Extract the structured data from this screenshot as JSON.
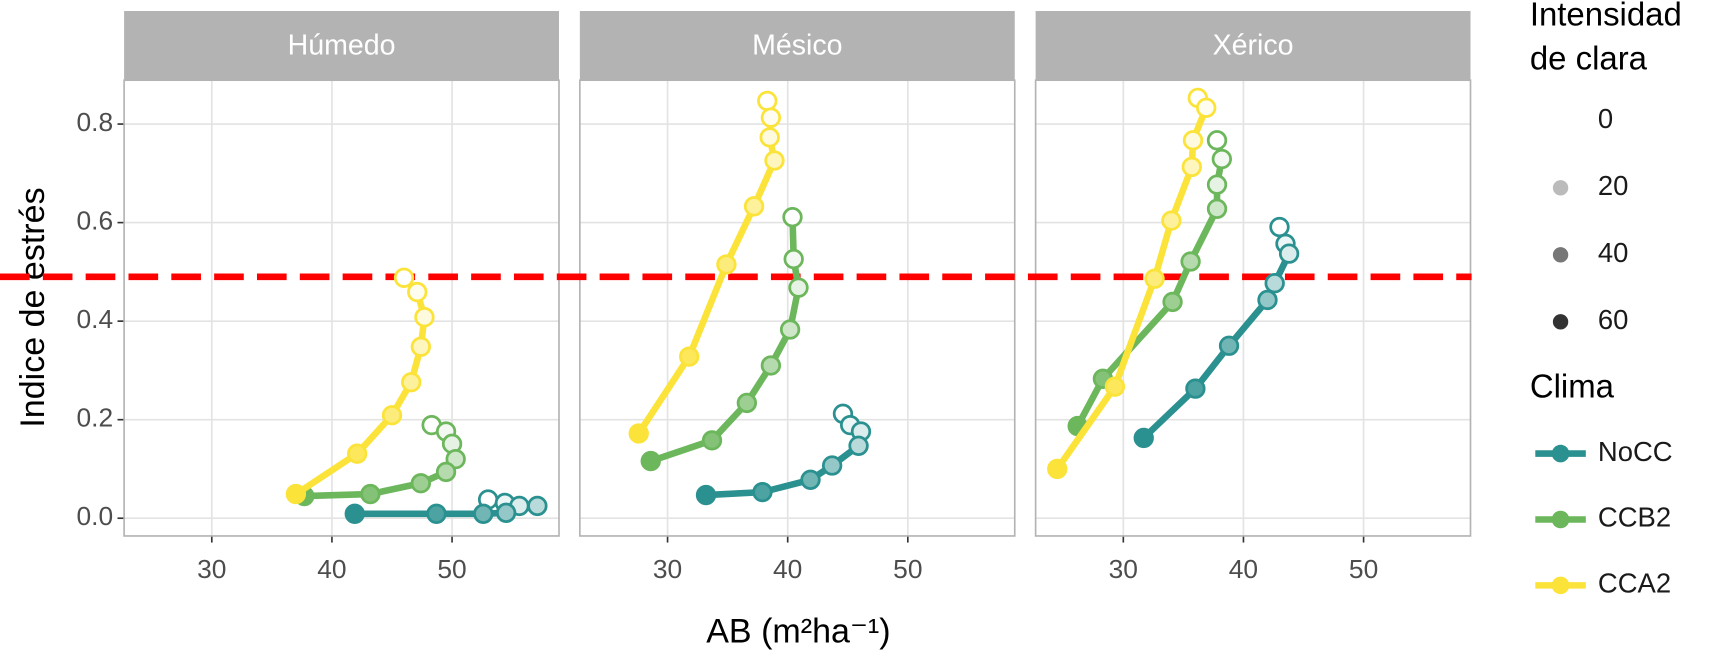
{
  "chart_data": {
    "type": "line",
    "x_label": "AB (m²ha⁻¹)",
    "y_label": "Indice de estrés",
    "xlim": [
      22.7,
      58.9
    ],
    "ylim": [
      -0.036,
      0.889
    ],
    "xticks": [
      30,
      40,
      50
    ],
    "yticks": [
      {
        "value": 0,
        "label": "0.0"
      },
      0.2,
      0.4,
      0.6,
      0.8
    ],
    "grid": true,
    "hline": {
      "value": 0.49,
      "color": "#ff0000"
    },
    "alpha_legend": {
      "title": "Intensidad\nde clara",
      "values": [
        0,
        20,
        40,
        60
      ],
      "color": "#333333"
    },
    "color_legend_title": "Clima",
    "series": [
      {
        "name": "NoCC",
        "color": "#2a9090"
      },
      {
        "name": "CCB2",
        "color": "#6cb65c"
      },
      {
        "name": "CCA2",
        "color": "#fbe33a"
      }
    ],
    "facets": [
      {
        "title": "Húmedo",
        "data": [
          {
            "x": [
              53.0,
              54.4,
              55.6,
              57.1,
              54.5,
              52.6,
              48.7,
              41.9
            ],
            "values": [
              0.038,
              0.031,
              0.025,
              0.025,
              0.011,
              0.009,
              0.009,
              0.009
            ],
            "intensity": [
              0,
              5,
              10,
              20,
              30,
              40,
              50,
              60
            ]
          },
          {
            "x": [
              48.3,
              49.5,
              50.0,
              50.3,
              49.5,
              47.4,
              43.2,
              37.7
            ],
            "values": [
              0.189,
              0.176,
              0.151,
              0.12,
              0.094,
              0.071,
              0.049,
              0.045
            ],
            "intensity": [
              0,
              5,
              10,
              20,
              30,
              40,
              50,
              60
            ]
          },
          {
            "x": [
              46.0,
              47.1,
              47.7,
              47.4,
              46.6,
              45.0,
              42.1,
              37.0
            ],
            "values": [
              0.488,
              0.459,
              0.408,
              0.348,
              0.276,
              0.209,
              0.131,
              0.049
            ],
            "intensity": [
              0,
              5,
              10,
              20,
              30,
              40,
              50,
              60
            ]
          }
        ]
      },
      {
        "title": "Mésico",
        "data": [
          {
            "x": [
              44.6,
              45.2,
              46.1,
              45.9,
              43.7,
              41.9,
              37.9,
              33.2
            ],
            "values": [
              0.212,
              0.189,
              0.176,
              0.147,
              0.107,
              0.078,
              0.053,
              0.047
            ],
            "intensity": [
              0,
              5,
              10,
              20,
              30,
              40,
              50,
              60
            ]
          },
          {
            "x": [
              40.4,
              40.5,
              40.9,
              40.2,
              38.6,
              36.6,
              33.7,
              28.6
            ],
            "values": [
              0.611,
              0.526,
              0.468,
              0.383,
              0.31,
              0.234,
              0.158,
              0.116
            ],
            "intensity": [
              0,
              5,
              10,
              20,
              30,
              40,
              50,
              60
            ]
          },
          {
            "x": [
              38.3,
              38.6,
              38.5,
              38.9,
              37.2,
              34.9,
              31.8,
              27.6
            ],
            "values": [
              0.847,
              0.813,
              0.773,
              0.726,
              0.633,
              0.515,
              0.328,
              0.172
            ],
            "intensity": [
              0,
              5,
              10,
              20,
              30,
              40,
              50,
              60
            ]
          }
        ]
      },
      {
        "title": "Xérico",
        "data": [
          {
            "x": [
              43.0,
              43.5,
              43.8,
              42.6,
              42.0,
              38.8,
              36.0,
              31.7
            ],
            "values": [
              0.591,
              0.557,
              0.537,
              0.477,
              0.443,
              0.35,
              0.263,
              0.163
            ],
            "intensity": [
              0,
              5,
              10,
              20,
              30,
              40,
              50,
              60
            ]
          },
          {
            "x": [
              37.8,
              38.2,
              37.8,
              37.8,
              35.6,
              34.1,
              28.3,
              26.2
            ],
            "values": [
              0.767,
              0.729,
              0.677,
              0.628,
              0.521,
              0.439,
              0.283,
              0.187
            ],
            "intensity": [
              0,
              5,
              10,
              20,
              30,
              40,
              50,
              60
            ]
          },
          {
            "x": [
              36.2,
              36.9,
              35.8,
              35.7,
              34.0,
              32.6,
              29.3,
              24.5
            ],
            "values": [
              0.853,
              0.833,
              0.767,
              0.713,
              0.604,
              0.486,
              0.267,
              0.1
            ],
            "intensity": [
              0,
              5,
              10,
              20,
              30,
              40,
              50,
              60
            ]
          }
        ]
      }
    ]
  }
}
